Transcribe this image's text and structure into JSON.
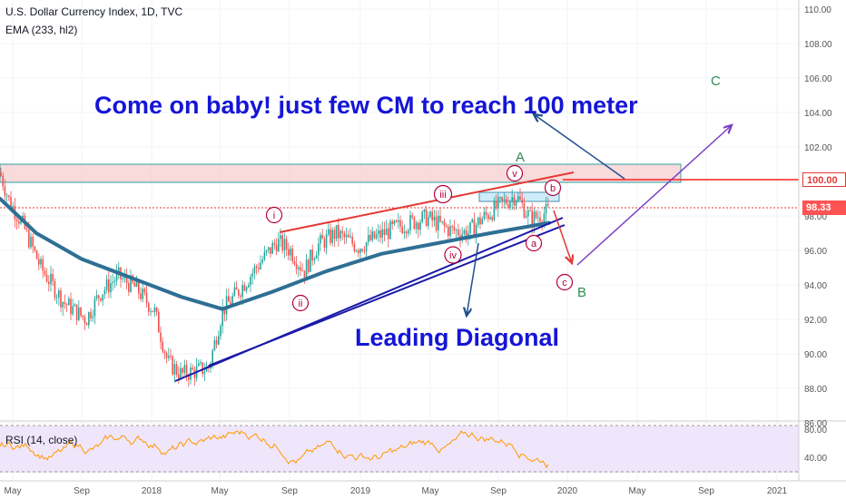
{
  "chart_title": "U.S. Dollar Currency Index, 1D, TVC",
  "indicator_label": "EMA (233, hl2)",
  "rsi_label": "RSI (14, close)",
  "price_axis_labels": [
    "110.00",
    "108.00",
    "106.00",
    "104.00",
    "102.00",
    "100.00",
    "98.00",
    "96.00",
    "94.00",
    "92.00",
    "90.00",
    "88.00",
    "86.00"
  ],
  "rsi_axis_labels": [
    "80.00",
    "40.00"
  ],
  "time_axis_labels": [
    "May",
    "Sep",
    "2018",
    "May",
    "Sep",
    "2019",
    "May",
    "Sep",
    "2020",
    "May",
    "Sep",
    "2021"
  ],
  "current_price_tag": "98.33",
  "level_tag": "100.00",
  "annotations": {
    "headline": "Come on baby! just few CM to reach 100 meter",
    "diagonal": "Leading Diagonal",
    "wave_A": "A",
    "wave_B": "B",
    "wave_C": "C",
    "wave_i": "i",
    "wave_ii": "ii",
    "wave_iii": "iii",
    "wave_iv": "iv",
    "wave_v": "v",
    "wave_a": "a",
    "wave_b": "b",
    "wave_c": "c"
  },
  "colors": {
    "candles_up": "#26a69a",
    "candles_down": "#ef5350",
    "ema": "#2f6f94",
    "headline": "#1515d6",
    "resistance_line": "#ff0000",
    "wave_circle": "#b3003b",
    "wave_labels_green": "#2e8b57",
    "rsi_line": "#ff9800",
    "rsi_bg": "#f0e6fb"
  },
  "chart_data": {
    "type": "candlestick",
    "ylim": [
      86,
      110
    ],
    "price_series_approx": [
      [
        0,
        100.5
      ],
      [
        10,
        98.9
      ],
      [
        25,
        97.5
      ],
      [
        45,
        95.0
      ],
      [
        70,
        93.0
      ],
      [
        95,
        92.0
      ],
      [
        110,
        93.5
      ],
      [
        130,
        94.5
      ],
      [
        150,
        93.8
      ],
      [
        170,
        92.5
      ],
      [
        185,
        89.5
      ],
      [
        200,
        88.8
      ],
      [
        230,
        89.2
      ],
      [
        245,
        92.5
      ],
      [
        265,
        93.8
      ],
      [
        285,
        95.2
      ],
      [
        305,
        96.5
      ],
      [
        320,
        96.0
      ],
      [
        335,
        94.8
      ],
      [
        350,
        96.3
      ],
      [
        370,
        97.0
      ],
      [
        395,
        96.2
      ],
      [
        415,
        96.8
      ],
      [
        440,
        97.4
      ],
      [
        470,
        97.9
      ],
      [
        495,
        97.2
      ],
      [
        515,
        97.0
      ],
      [
        530,
        97.8
      ],
      [
        550,
        98.6
      ],
      [
        568,
        99.2
      ],
      [
        585,
        97.8
      ],
      [
        605,
        98.3
      ]
    ],
    "ema_series_approx": [
      [
        0,
        99.0
      ],
      [
        40,
        97.0
      ],
      [
        90,
        95.5
      ],
      [
        150,
        94.3
      ],
      [
        200,
        93.3
      ],
      [
        245,
        92.6
      ],
      [
        300,
        93.6
      ],
      [
        360,
        94.8
      ],
      [
        420,
        95.8
      ],
      [
        480,
        96.4
      ],
      [
        540,
        97.0
      ],
      [
        605,
        97.6
      ]
    ],
    "horizontal_levels": [
      100.0
    ],
    "current_price": 98.33
  }
}
